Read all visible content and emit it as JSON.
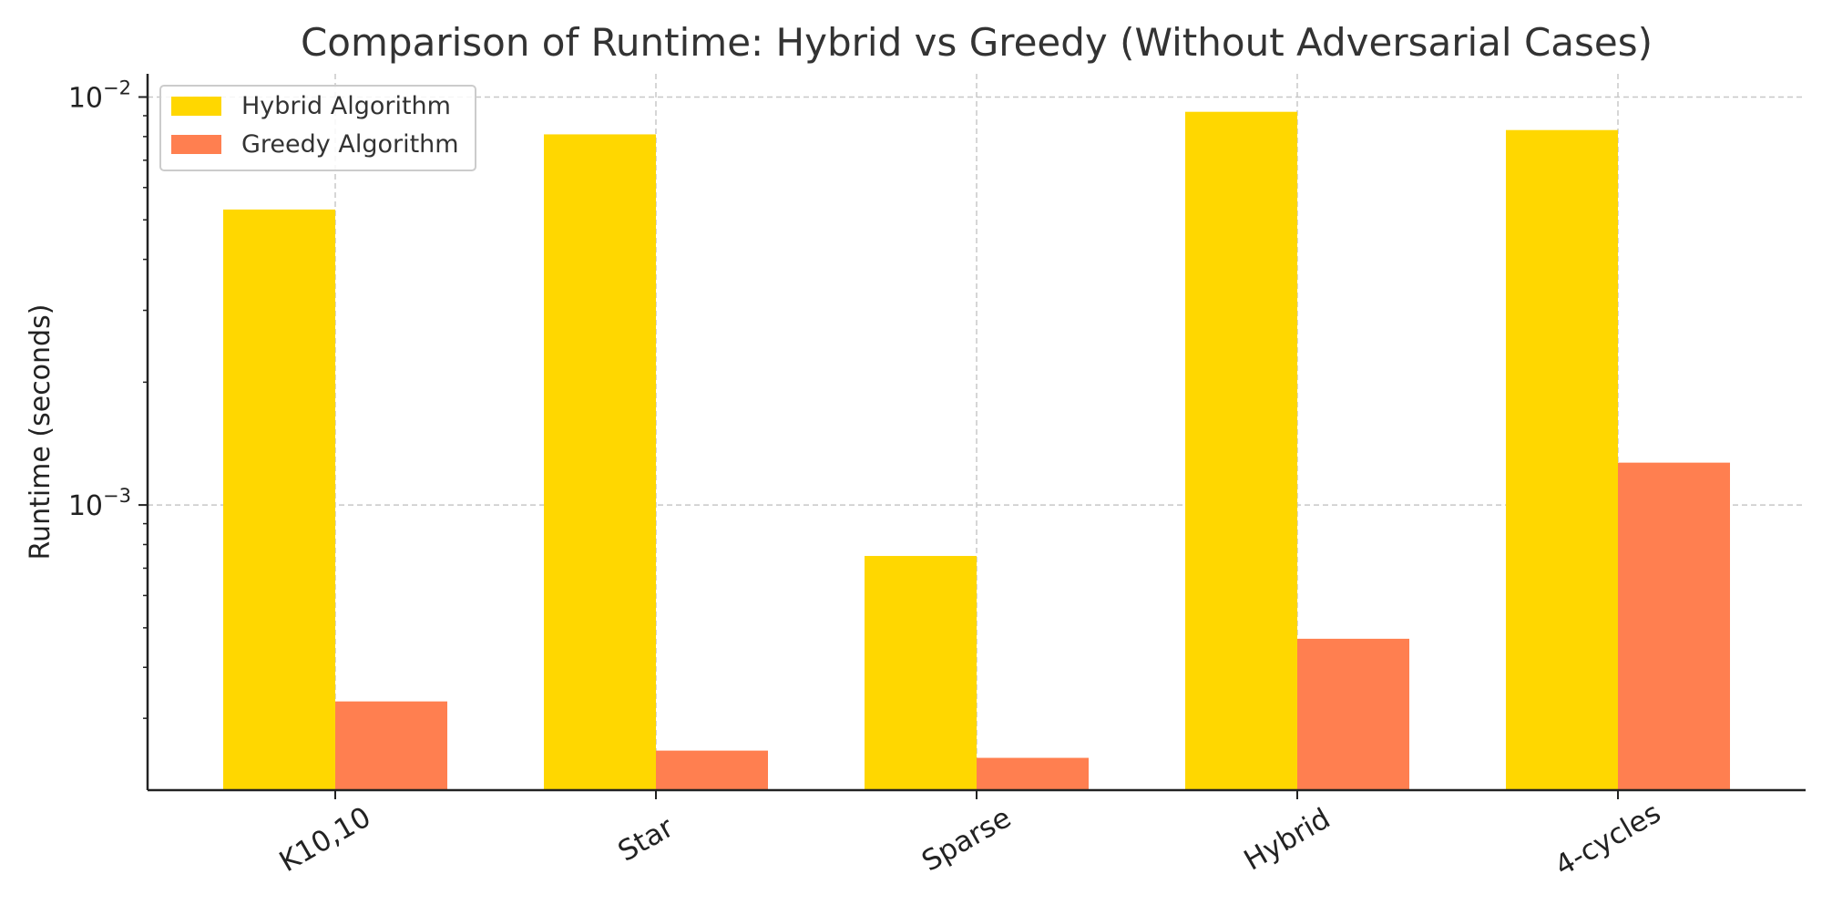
{
  "chart_data": {
    "type": "bar",
    "title": "Comparison of Runtime: Hybrid vs Greedy (Without Adversarial Cases)",
    "xlabel": "",
    "ylabel": "Runtime (seconds)",
    "y_scale": "log",
    "ylim": [
      0.0002,
      0.0114
    ],
    "y_ticks": [
      {
        "value": 0.01,
        "base": "10",
        "exp": "−2"
      },
      {
        "value": 0.001,
        "base": "10",
        "exp": "−3"
      }
    ],
    "grid": true,
    "legend_position": "top-left",
    "categories": [
      "K10,10",
      "Star",
      "Sparse",
      "Hybrid",
      "4-cycles"
    ],
    "series": [
      {
        "name": "Hybrid Algorithm",
        "color": "#FFD700",
        "values": [
          0.0053,
          0.0081,
          0.00075,
          0.0092,
          0.0083
        ]
      },
      {
        "name": "Greedy Algorithm",
        "color": "#FF7F50",
        "values": [
          0.00033,
          0.00025,
          0.00024,
          0.00047,
          0.00127
        ]
      }
    ]
  }
}
